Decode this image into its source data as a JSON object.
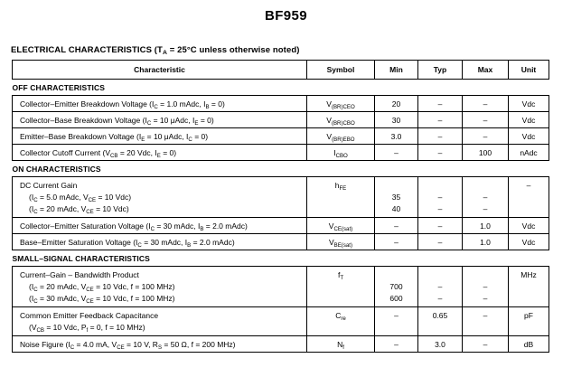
{
  "page": {
    "title": "BF959"
  },
  "heading": {
    "label": "ELECTRICAL CHARACTERISTICS",
    "condition": "(T_{A} = 25°C unless otherwise noted)"
  },
  "table": {
    "columns": [
      "Characteristic",
      "Symbol",
      "Min",
      "Typ",
      "Max",
      "Unit"
    ],
    "sections": [
      {
        "title": "OFF CHARACTERISTICS",
        "rows": [
          {
            "characteristic": [
              "Collector–Emitter Breakdown Voltage (I_{C} = 1.0 mAdc, I_{B} = 0)"
            ],
            "symbol": [
              "V_{(BR)CEO}"
            ],
            "min": [
              "20"
            ],
            "typ": [
              "–"
            ],
            "max": [
              "–"
            ],
            "unit": [
              "Vdc"
            ]
          },
          {
            "characteristic": [
              "Collector–Base Breakdown Voltage (I_{C} = 10 μAdc, I_{E} = 0)"
            ],
            "symbol": [
              "V_{(BR)CBO}"
            ],
            "min": [
              "30"
            ],
            "typ": [
              "–"
            ],
            "max": [
              "–"
            ],
            "unit": [
              "Vdc"
            ]
          },
          {
            "characteristic": [
              "Emitter–Base Breakdown Voltage (I_{E} = 10 μAdc, I_{C} = 0)"
            ],
            "symbol": [
              "V_{(BR)EBO}"
            ],
            "min": [
              "3.0"
            ],
            "typ": [
              "–"
            ],
            "max": [
              "–"
            ],
            "unit": [
              "Vdc"
            ]
          },
          {
            "characteristic": [
              "Collector Cutoff Current (V_{CB} = 20 Vdc, I_{E} = 0)"
            ],
            "symbol": [
              "I_{CBO}"
            ],
            "min": [
              "–"
            ],
            "typ": [
              "–"
            ],
            "max": [
              "100"
            ],
            "unit": [
              "nAdc"
            ]
          }
        ]
      },
      {
        "title": "ON CHARACTERISTICS",
        "rows": [
          {
            "characteristic": [
              "DC Current Gain",
              "(I_{C} = 5.0 mAdc, V_{CE} = 10 Vdc)",
              "(I_{C} = 20 mAdc, V_{CE} = 10 Vdc)"
            ],
            "symbol": [
              "h_{FE}"
            ],
            "min": [
              "",
              "35",
              "40"
            ],
            "typ": [
              "",
              "–",
              "–"
            ],
            "max": [
              "",
              "–",
              "–"
            ],
            "unit": [
              "–"
            ]
          },
          {
            "characteristic": [
              "Collector–Emitter Saturation Voltage (I_{C} = 30 mAdc, I_{B} = 2.0 mAdc)"
            ],
            "symbol": [
              "V_{CE(sat)}"
            ],
            "min": [
              "–"
            ],
            "typ": [
              "–"
            ],
            "max": [
              "1.0"
            ],
            "unit": [
              "Vdc"
            ]
          },
          {
            "characteristic": [
              "Base–Emitter Saturation Voltage (I_{C} = 30 mAdc, I_{B} = 2.0 mAdc)"
            ],
            "symbol": [
              "V_{BE(sat)}"
            ],
            "min": [
              "–"
            ],
            "typ": [
              "–"
            ],
            "max": [
              "1.0"
            ],
            "unit": [
              "Vdc"
            ]
          }
        ]
      },
      {
        "title": "SMALL–SIGNAL CHARACTERISTICS",
        "rows": [
          {
            "characteristic": [
              "Current–Gain – Bandwidth Product",
              "(I_{C} = 20 mAdc, V_{CE} = 10 Vdc, f = 100 MHz)",
              "(I_{C} = 30 mAdc, V_{CE} = 10 Vdc, f = 100 MHz)"
            ],
            "symbol": [
              "f_{T}"
            ],
            "min": [
              "",
              "700",
              "600"
            ],
            "typ": [
              "",
              "–",
              "–"
            ],
            "max": [
              "",
              "–",
              "–"
            ],
            "unit": [
              "MHz"
            ]
          },
          {
            "characteristic": [
              "Common Emitter Feedback Capacitance",
              "(V_{CB} = 10 Vdc, P_{f} = 0, f = 10 MHz)"
            ],
            "symbol": [
              "C_{re}"
            ],
            "min": [
              "–"
            ],
            "typ": [
              "0.65"
            ],
            "max": [
              "–"
            ],
            "unit": [
              "pF"
            ]
          },
          {
            "characteristic": [
              "Noise Figure (I_{C} = 4.0 mA, V_{CE} = 10 V, R_{S} = 50 Ω, f = 200 MHz)"
            ],
            "symbol": [
              "N_{f}"
            ],
            "min": [
              "–"
            ],
            "typ": [
              "3.0"
            ],
            "max": [
              "–"
            ],
            "unit": [
              "dB"
            ]
          }
        ]
      }
    ]
  }
}
